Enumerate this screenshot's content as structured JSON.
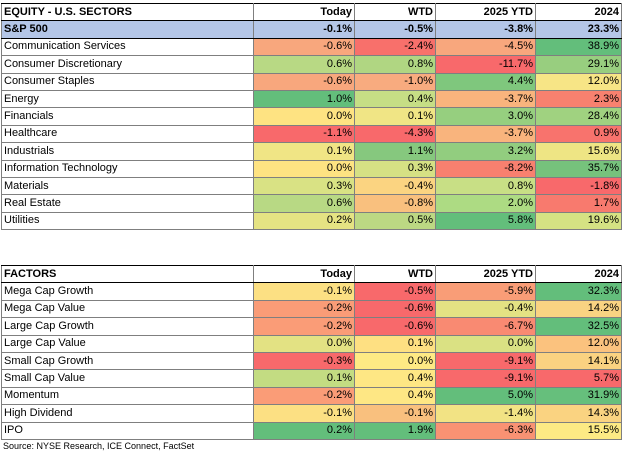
{
  "sectors": {
    "headers": [
      "EQUITY - U.S. SECTORS",
      "Today",
      "WTD",
      "2025 YTD",
      "2024"
    ],
    "benchmark": {
      "label": "S&P 500",
      "values": [
        "-0.1%",
        "-0.5%",
        "-3.8%",
        "23.3%"
      ]
    },
    "rows": [
      {
        "label": "Communication Services",
        "values": [
          "-0.6%",
          "-2.4%",
          "-4.5%",
          "38.9%"
        ],
        "colors": [
          "#f8a77d",
          "#f8706b",
          "#f8a77d",
          "#63be7b"
        ]
      },
      {
        "label": "Consumer Discretionary",
        "values": [
          "0.6%",
          "0.8%",
          "-11.7%",
          "29.1%"
        ],
        "colors": [
          "#b8d984",
          "#b0d682",
          "#f8696b",
          "#98ce7f"
        ]
      },
      {
        "label": "Consumer Staples",
        "values": [
          "-0.6%",
          "-1.0%",
          "4.4%",
          "12.0%"
        ],
        "colors": [
          "#f8a77d",
          "#f8ab7f",
          "#7fc77d",
          "#f7e586"
        ]
      },
      {
        "label": "Energy",
        "values": [
          "1.0%",
          "0.4%",
          "-3.7%",
          "2.3%"
        ],
        "colors": [
          "#63be7b",
          "#c6de85",
          "#f9b47d",
          "#f8816f"
        ]
      },
      {
        "label": "Financials",
        "values": [
          "0.0%",
          "0.1%",
          "3.0%",
          "28.4%"
        ],
        "colors": [
          "#fee382",
          "#f0e585",
          "#96cf7f",
          "#a0d280"
        ]
      },
      {
        "label": "Healthcare",
        "values": [
          "-1.1%",
          "-4.3%",
          "-3.7%",
          "0.9%"
        ],
        "colors": [
          "#f8696b",
          "#f8696b",
          "#f9b47d",
          "#f8736d"
        ]
      },
      {
        "label": "Industrials",
        "values": [
          "0.1%",
          "1.1%",
          "3.2%",
          "15.6%"
        ],
        "colors": [
          "#f0e585",
          "#86c87e",
          "#92cd7f",
          "#eee584"
        ]
      },
      {
        "label": "Information Technology",
        "values": [
          "0.0%",
          "0.3%",
          "-8.2%",
          "35.7%"
        ],
        "colors": [
          "#fee382",
          "#d6e184",
          "#f8806f",
          "#76c27c"
        ]
      },
      {
        "label": "Materials",
        "values": [
          "0.3%",
          "-0.4%",
          "0.8%",
          "-1.8%"
        ],
        "colors": [
          "#d9e284",
          "#fbd481",
          "#c8df85",
          "#f8696b"
        ]
      },
      {
        "label": "Real Estate",
        "values": [
          "0.6%",
          "-0.8%",
          "2.0%",
          "1.7%"
        ],
        "colors": [
          "#b8d984",
          "#f9c07e",
          "#addb83",
          "#f87a6e"
        ]
      },
      {
        "label": "Utilities",
        "values": [
          "0.2%",
          "0.5%",
          "5.8%",
          "19.6%"
        ],
        "colors": [
          "#e5e383",
          "#bcd883",
          "#63be7b",
          "#d5e283"
        ]
      }
    ]
  },
  "factors": {
    "headers": [
      "FACTORS",
      "Today",
      "WTD",
      "2025 YTD",
      "2024"
    ],
    "rows": [
      {
        "label": "Mega Cap Growth",
        "values": [
          "-0.1%",
          "-0.5%",
          "-5.9%",
          "32.3%"
        ],
        "colors": [
          "#fce083",
          "#f8696b",
          "#f99d77",
          "#63be7b"
        ]
      },
      {
        "label": "Mega Cap Value",
        "values": [
          "-0.2%",
          "-0.6%",
          "-0.4%",
          "14.2%"
        ],
        "colors": [
          "#fa9c77",
          "#f8696b",
          "#e4e283",
          "#f9d382"
        ]
      },
      {
        "label": "Large Cap Growth",
        "values": [
          "-0.2%",
          "-0.6%",
          "-6.7%",
          "32.5%"
        ],
        "colors": [
          "#fa9c77",
          "#f8696b",
          "#f98a72",
          "#63be7b"
        ]
      },
      {
        "label": "Large Cap Value",
        "values": [
          "0.0%",
          "0.1%",
          "0.0%",
          "12.0%"
        ],
        "colors": [
          "#e3e283",
          "#fee082",
          "#dae183",
          "#fbc27e"
        ]
      },
      {
        "label": "Small Cap Growth",
        "values": [
          "-0.3%",
          "0.0%",
          "-9.1%",
          "14.1%"
        ],
        "colors": [
          "#f8696b",
          "#feea84",
          "#f8696b",
          "#fad281"
        ]
      },
      {
        "label": "Small Cap Value",
        "values": [
          "0.1%",
          "0.4%",
          "-9.1%",
          "5.7%"
        ],
        "colors": [
          "#c3dc82",
          "#fee784",
          "#f8696b",
          "#f8696b"
        ]
      },
      {
        "label": "Momentum",
        "values": [
          "-0.2%",
          "0.4%",
          "5.0%",
          "31.9%"
        ],
        "colors": [
          "#fa9c77",
          "#fee784",
          "#63be7b",
          "#66bf7c"
        ]
      },
      {
        "label": "High Dividend",
        "values": [
          "-0.1%",
          "-0.1%",
          "-1.4%",
          "14.3%"
        ],
        "colors": [
          "#fce083",
          "#f9c07e",
          "#f2e384",
          "#fad381"
        ]
      },
      {
        "label": "IPO",
        "values": [
          "0.2%",
          "1.9%",
          "-6.3%",
          "15.5%"
        ],
        "colors": [
          "#63be7b",
          "#63be7b",
          "#f99273",
          "#fdea84"
        ]
      }
    ]
  },
  "source": "Source: NYSE Research, ICE Connect, FactSet"
}
